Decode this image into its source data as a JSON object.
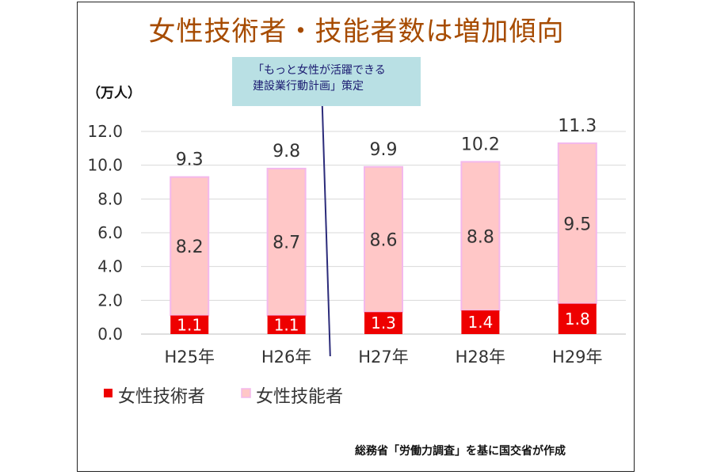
{
  "title": "女性技術者・技能者数は増加傾向",
  "unit_label": "（万人）",
  "callout": {
    "line1": "「もっと女性が活躍できる",
    "line2": "建設業行動計画」策定"
  },
  "source": "総務省「労働力調査」を基に国交省が作成",
  "chart_data": {
    "type": "bar",
    "stacked": true,
    "categories": [
      "H25年",
      "H26年",
      "H27年",
      "H28年",
      "H29年"
    ],
    "series": [
      {
        "name": "女性技術者",
        "color": "#ee0000",
        "values": [
          1.1,
          1.1,
          1.3,
          1.4,
          1.8
        ]
      },
      {
        "name": "女性技能者",
        "color": "#ffc7c7",
        "values": [
          8.2,
          8.7,
          8.6,
          8.8,
          9.5
        ]
      }
    ],
    "totals": [
      9.3,
      9.8,
      9.9,
      10.2,
      11.3
    ],
    "ylim": [
      0,
      12
    ],
    "yticks": [
      "0.0",
      "2.0",
      "4.0",
      "6.0",
      "8.0",
      "10.0",
      "12.0"
    ],
    "grid": true,
    "legend_position": "bottom-left",
    "annotation_after_category": "H26年"
  }
}
